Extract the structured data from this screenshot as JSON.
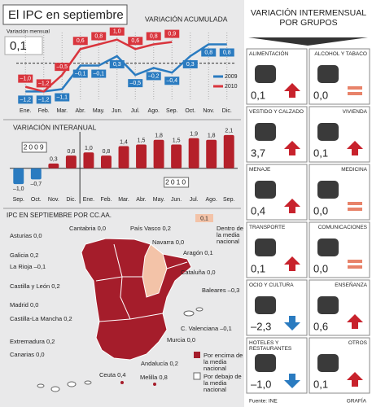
{
  "header": {
    "title": "El IPC en septiembre",
    "source": "Fuente: INE",
    "credit": "GRAFÍA"
  },
  "chart_data": [
    {
      "type": "line",
      "title": "VARIACIÓN ACUMULADA",
      "subtitle": "Variación mensual",
      "current_value": "0,1",
      "categories": [
        "Ene.",
        "Feb.",
        "Mar.",
        "Abr.",
        "May.",
        "Jun.",
        "Jul.",
        "Ago.",
        "Sep.",
        "Oct.",
        "Nov.",
        "Dic."
      ],
      "ylim": [
        -1.6,
        1.3
      ],
      "series": [
        {
          "name": "2009",
          "color": "#2a7bc0",
          "values": [
            -1.2,
            -1.2,
            -1.1,
            -0.1,
            -0.1,
            0.3,
            -0.5,
            -0.2,
            -0.4,
            0.3,
            0.8,
            0.8
          ],
          "value_labels": [
            "–1,2",
            "–1,2",
            "–1,1",
            "–0,1",
            "–0,1",
            "0,3",
            "–0,5",
            "–0,2",
            "–0,4",
            "0,3",
            "0,8",
            "0,8"
          ]
        },
        {
          "name": "2010",
          "color": "#d9353d",
          "values": [
            -1.0,
            -1.2,
            -0.5,
            0.6,
            0.8,
            1.0,
            0.6,
            0.8,
            0.9,
            null,
            null,
            null
          ],
          "value_labels": [
            "–1,0",
            "–1,2",
            "–0,5",
            "0,6",
            "0,8",
            "1,0",
            "0,6",
            "0,8",
            "0,9",
            null,
            null,
            null
          ]
        }
      ]
    },
    {
      "type": "bar",
      "title": "VARIACIÓN INTERANUAL",
      "year_labels": [
        "2009",
        "2010"
      ],
      "categories": [
        "Sep.",
        "Oct.",
        "Nov.",
        "Dic.",
        "Ene.",
        "Feb.",
        "Mar.",
        "Abr.",
        "May.",
        "Jun.",
        "Jul.",
        "Ago.",
        "Sep."
      ],
      "values": [
        -1.0,
        -0.7,
        0.3,
        0.8,
        1.0,
        0.8,
        1.4,
        1.5,
        1.8,
        1.5,
        1.9,
        1.8,
        2.1
      ],
      "value_labels": [
        "–1,0",
        "–0,7",
        "0,3",
        "0,8",
        "1,0",
        "0,8",
        "1,4",
        "1,5",
        "1,8",
        "1,5",
        "1,9",
        "1,8",
        "2,1"
      ],
      "colors": [
        "#2a7bc0",
        "#2a7bc0",
        "#b5202a",
        "#b5202a",
        "#b5202a",
        "#b5202a",
        "#b5202a",
        "#b5202a",
        "#b5202a",
        "#b5202a",
        "#b5202a",
        "#b5202a",
        "#b5202a"
      ],
      "ylim": [
        -1.3,
        2.3
      ]
    }
  ],
  "map": {
    "title": "IPC EN SEPTIEMBRE POR CC.AA.",
    "regions": [
      "Asturias 0,0",
      "Cantabria 0,0",
      "País Vasco 0,2",
      "Navarra 0,0",
      "Galicia 0,2",
      "La Rioja –0,1",
      "Aragón 0,1",
      "Cataluña 0,0",
      "Castilla y León 0,2",
      "Baleares –0,3",
      "Madrid 0,0",
      "Castilla-La Mancha 0,2",
      "C. Valenciana –0,1",
      "Extremadura 0,2",
      "Murcia 0,0",
      "Andalucía 0,2",
      "Canarias 0,0",
      "Ceuta 0,4",
      "Melilla 0,8"
    ],
    "legend": {
      "national_value": "0,1",
      "within": "Dentro de la media nacional",
      "above": "Por encima de la media nacional",
      "below": "Por debajo de la media nacional"
    }
  },
  "groups": {
    "title": "VARIACIÓN INTERMENSUAL POR GRUPOS",
    "items": [
      {
        "name": "ALIMENTACIÓN",
        "value": 0.1,
        "value_label": "0,1"
      },
      {
        "name": "ALCOHOL Y TABACO",
        "value": 0.0,
        "value_label": "0,0"
      },
      {
        "name": "VESTIDO Y CALZADO",
        "value": 3.7,
        "value_label": "3,7"
      },
      {
        "name": "VIVIENDA",
        "value": 0.1,
        "value_label": "0,1"
      },
      {
        "name": "MENAJE",
        "value": 0.4,
        "value_label": "0,4"
      },
      {
        "name": "MEDICINA",
        "value": 0.0,
        "value_label": "0,0"
      },
      {
        "name": "TRANSPORTE",
        "value": 0.1,
        "value_label": "0,1"
      },
      {
        "name": "COMUNICACIONES",
        "value": 0.0,
        "value_label": "0,0"
      },
      {
        "name": "OCIO Y CULTURA",
        "value": -2.3,
        "value_label": "–2,3"
      },
      {
        "name": "ENSEÑANZA",
        "value": 0.6,
        "value_label": "0,6"
      },
      {
        "name": "HOTELES Y RESTAURANTES",
        "value": -1.0,
        "value_label": "–1,0"
      },
      {
        "name": "OTROS",
        "value": 0.1,
        "value_label": "0,1"
      }
    ]
  }
}
